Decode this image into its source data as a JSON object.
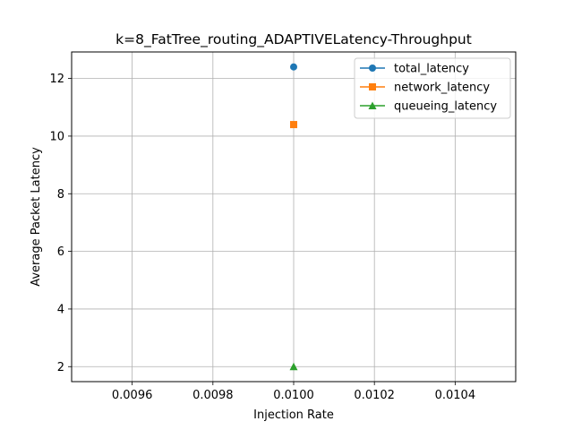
{
  "chart_data": {
    "type": "line",
    "title": "k=8_FatTree_routing_ADAPTIVELatency-Throughput",
    "xlabel": "Injection Rate",
    "ylabel": "Average Packet Latency",
    "xlim": [
      0.00945,
      0.01055
    ],
    "ylim": [
      1.48,
      12.92
    ],
    "xticks": [
      0.0096,
      0.0098,
      0.01,
      0.0102,
      0.0104
    ],
    "xtick_labels": [
      "0.0096",
      "0.0098",
      "0.0100",
      "0.0102",
      "0.0104"
    ],
    "yticks": [
      2,
      4,
      6,
      8,
      10,
      12
    ],
    "ytick_labels": [
      "2",
      "4",
      "6",
      "8",
      "10",
      "12"
    ],
    "grid": true,
    "legend_position": "top-right",
    "series": [
      {
        "name": "total_latency",
        "color": "#1f77b4",
        "marker": "circle",
        "x": [
          0.01
        ],
        "y": [
          12.4
        ]
      },
      {
        "name": "network_latency",
        "color": "#ff7f0e",
        "marker": "square",
        "x": [
          0.01
        ],
        "y": [
          10.4
        ]
      },
      {
        "name": "queueing_latency",
        "color": "#2ca02c",
        "marker": "triangle",
        "x": [
          0.01
        ],
        "y": [
          2.0
        ]
      }
    ]
  }
}
